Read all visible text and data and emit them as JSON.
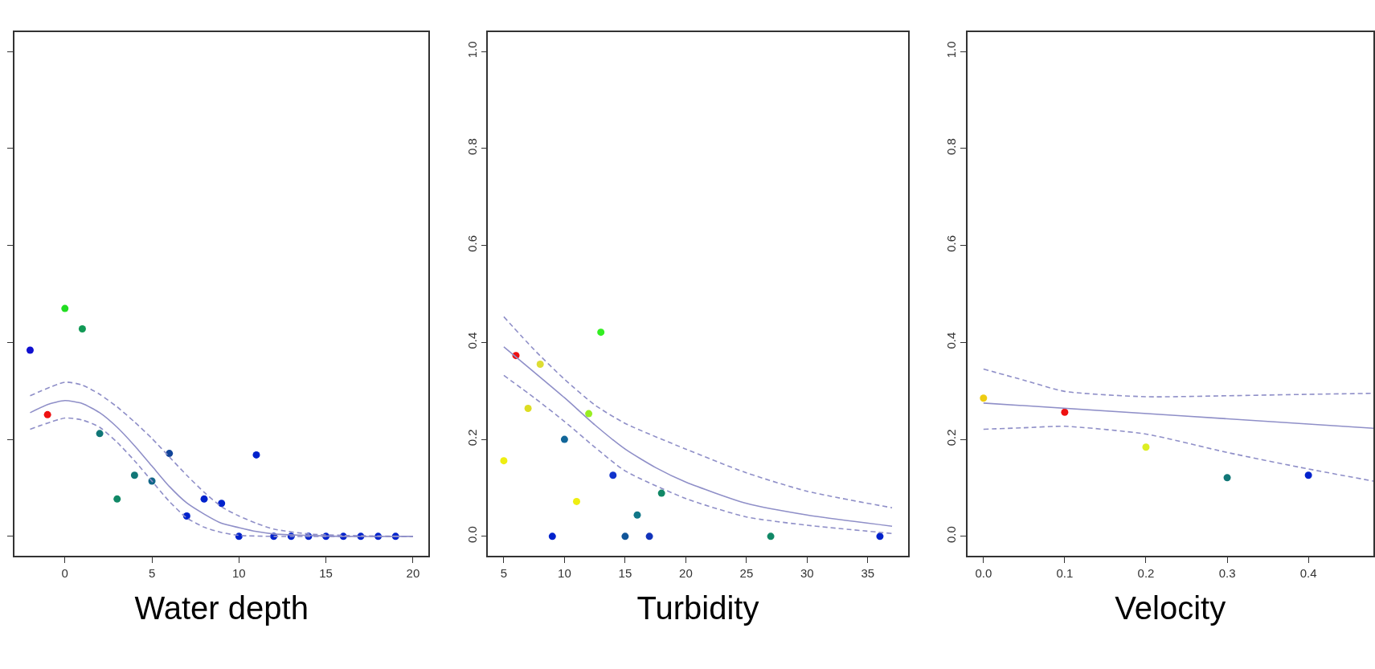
{
  "chart_data": [
    {
      "type": "line",
      "xlabel": "Water depth",
      "xlim": [
        -2.9,
        20.9
      ],
      "xticks": [
        0,
        5,
        10,
        15,
        20
      ],
      "ylim": [
        -0.04,
        1.04
      ],
      "yticks": [
        {
          "value": 0,
          "label": null
        },
        {
          "value": 0.2,
          "label": null
        },
        {
          "value": 0.4,
          "label": null
        },
        {
          "value": 0.6,
          "label": null
        },
        {
          "value": 0.8,
          "label": null
        },
        {
          "value": 1,
          "label": null
        }
      ],
      "tick_labels": "x",
      "series": [
        {
          "type": "scatter",
          "marker": "circle",
          "x": [
            -2,
            -1,
            0,
            1,
            2,
            3,
            4,
            5,
            6,
            7,
            8,
            9,
            10,
            11,
            12,
            13,
            14,
            15,
            16,
            17,
            18,
            19
          ],
          "values": [
            0.384,
            0.251,
            0.47,
            0.428,
            0.212,
            0.077,
            0.126,
            0.114,
            0.171,
            0.042,
            0.077,
            0.068,
            0,
            0.168,
            0,
            0,
            0,
            0,
            0,
            0,
            0,
            0
          ],
          "colors": [
            "#1010d0",
            "#ee1111",
            "#22dd22",
            "#119955",
            "#117777",
            "#118866",
            "#117777",
            "#116688",
            "#114499",
            "#0022cc",
            "#0022cc",
            "#0022cc",
            "#0022cc",
            "#0022cc",
            "#0022cc",
            "#0022cc",
            "#0022cc",
            "#0022cc",
            "#0022cc",
            "#0022cc",
            "#0022cc",
            "#0022cc"
          ]
        },
        {
          "color": "#8f8fc8",
          "line_style": "solid",
          "x": [
            -2,
            -1,
            0,
            1,
            2,
            3,
            4,
            5,
            6,
            7,
            8,
            9,
            10,
            11,
            12,
            14,
            16,
            20
          ],
          "values": [
            0.255,
            0.272,
            0.28,
            0.274,
            0.255,
            0.225,
            0.187,
            0.145,
            0.103,
            0.069,
            0.046,
            0.027,
            0.018,
            0.01,
            0.005,
            0.002,
            0,
            0
          ]
        },
        {
          "color": "#8f8fc8",
          "line_style": "dashed",
          "x": [
            -2,
            0,
            1,
            2,
            3,
            4,
            5,
            6,
            7,
            8,
            9,
            10,
            11,
            12,
            14,
            16,
            20
          ],
          "values": [
            0.29,
            0.318,
            0.312,
            0.293,
            0.267,
            0.236,
            0.202,
            0.164,
            0.126,
            0.091,
            0.061,
            0.042,
            0.027,
            0.015,
            0.005,
            0.002,
            0
          ]
        },
        {
          "color": "#8f8fc8",
          "line_style": "dashed",
          "x": [
            -2,
            0,
            1,
            2,
            3,
            4,
            5,
            6,
            7,
            8,
            9,
            10,
            12,
            20
          ],
          "values": [
            0.221,
            0.244,
            0.24,
            0.225,
            0.194,
            0.156,
            0.114,
            0.072,
            0.038,
            0.019,
            0.008,
            0.002,
            0,
            0
          ]
        }
      ]
    },
    {
      "type": "line",
      "xlabel": "Turbidity",
      "xlim": [
        3.7,
        38.3
      ],
      "xticks": [
        5,
        10,
        15,
        20,
        25,
        30,
        35
      ],
      "ylim": [
        -0.04,
        1.04
      ],
      "yticks": [
        {
          "value": 0,
          "label": "0.0"
        },
        0.2,
        0.4,
        0.6,
        0.8,
        {
          "value": 1,
          "label": "1.0"
        }
      ],
      "series": [
        {
          "type": "scatter",
          "marker": "circle",
          "x": [
            5,
            6,
            7,
            8,
            9,
            10,
            11,
            12,
            13,
            14,
            15,
            16,
            17,
            18,
            27,
            36
          ],
          "values": [
            0.156,
            0.373,
            0.264,
            0.355,
            0,
            0.2,
            0.072,
            0.253,
            0.421,
            0.126,
            0,
            0.044,
            0,
            0.089,
            0,
            0
          ],
          "colors": [
            "#eeee11",
            "#ee1111",
            "#dddd22",
            "#dddd33",
            "#0022cc",
            "#116699",
            "#eeee11",
            "#99ee22",
            "#33ee22",
            "#1133cc",
            "#115599",
            "#117788",
            "#1133bb",
            "#118866",
            "#118866",
            "#0022cc"
          ]
        },
        {
          "color": "#8f8fc8",
          "line_style": "solid",
          "x": [
            5,
            10,
            12.5,
            15,
            17.5,
            20,
            25,
            30,
            37
          ],
          "values": [
            0.391,
            0.286,
            0.23,
            0.18,
            0.142,
            0.112,
            0.068,
            0.044,
            0.021
          ]
        },
        {
          "color": "#8f8fc8",
          "line_style": "dashed",
          "x": [
            5,
            7.5,
            10,
            12.5,
            15,
            20,
            25,
            30,
            37
          ],
          "values": [
            0.453,
            0.385,
            0.324,
            0.271,
            0.233,
            0.18,
            0.131,
            0.093,
            0.059
          ]
        },
        {
          "color": "#8f8fc8",
          "line_style": "dashed",
          "x": [
            5,
            7.5,
            10,
            12.5,
            15,
            20,
            25,
            30,
            37
          ],
          "values": [
            0.332,
            0.286,
            0.237,
            0.184,
            0.135,
            0.078,
            0.04,
            0.023,
            0.006
          ]
        }
      ]
    },
    {
      "type": "line",
      "xlabel": "Velocity",
      "xlim": [
        -0.02,
        0.48
      ],
      "xticks": [
        {
          "value": 0,
          "label": "0.0"
        },
        0.1,
        0.2,
        0.3,
        0.4
      ],
      "ylim": [
        -0.04,
        1.04
      ],
      "yticks": [
        {
          "value": 0,
          "label": "0.0"
        },
        0.2,
        0.4,
        0.6,
        0.8,
        {
          "value": 1,
          "label": "1.0"
        }
      ],
      "series": [
        {
          "type": "scatter",
          "marker": "circle",
          "x": [
            0,
            0.1,
            0.2,
            0.3,
            0.4
          ],
          "values": [
            0.285,
            0.256,
            0.184,
            0.121,
            0.126
          ],
          "colors": [
            "#eecc11",
            "#ee1111",
            "#ddee22",
            "#117777",
            "#0022cc"
          ]
        },
        {
          "color": "#8f8fc8",
          "line_style": "solid",
          "x": [
            0,
            0.24,
            0.48
          ],
          "values": [
            0.275,
            0.249,
            0.223
          ]
        },
        {
          "color": "#8f8fc8",
          "line_style": "dashed",
          "x": [
            0,
            0.05,
            0.1,
            0.2,
            0.3,
            0.4,
            0.48
          ],
          "values": [
            0.345,
            0.322,
            0.299,
            0.288,
            0.29,
            0.293,
            0.295
          ]
        },
        {
          "color": "#8f8fc8",
          "line_style": "dashed",
          "x": [
            0,
            0.05,
            0.1,
            0.2,
            0.3,
            0.4,
            0.48
          ],
          "values": [
            0.221,
            0.224,
            0.227,
            0.211,
            0.173,
            0.139,
            0.114
          ]
        }
      ]
    }
  ]
}
